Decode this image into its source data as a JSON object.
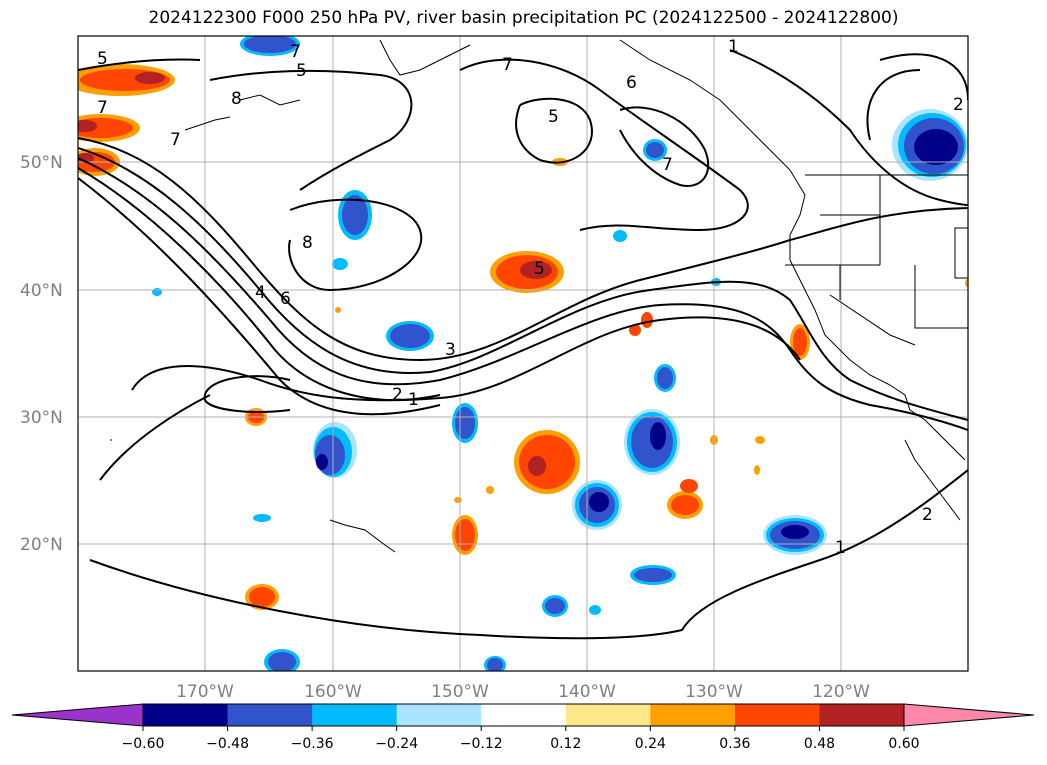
{
  "title": "2024122300 F000 250 hPa PV, river basin precipitation PC (2024122500 - 2024122800)",
  "map": {
    "lon_range": [
      -180,
      -110
    ],
    "lat_range": [
      10,
      60
    ],
    "lat_ticks": [
      {
        "value": 20,
        "label": "20°N"
      },
      {
        "value": 30,
        "label": "30°N"
      },
      {
        "value": 40,
        "label": "40°N"
      },
      {
        "value": 50,
        "label": "50°N"
      }
    ],
    "lon_ticks": [
      {
        "value": -170,
        "label": "170°W"
      },
      {
        "value": -160,
        "label": "160°W"
      },
      {
        "value": -150,
        "label": "150°W"
      },
      {
        "value": -140,
        "label": "140°W"
      },
      {
        "value": -130,
        "label": "130°W"
      },
      {
        "value": -120,
        "label": "120°W"
      }
    ],
    "grid": true,
    "contour_labels": [
      "5",
      "7",
      "7",
      "8",
      "5",
      "7",
      "5",
      "6",
      "7",
      "1",
      "2",
      "8",
      "5",
      "4",
      "6",
      "3",
      "2",
      "1",
      "1",
      "2",
      "7"
    ]
  },
  "colorbar": {
    "ticks": [
      "−0.60",
      "−0.48",
      "−0.36",
      "−0.24",
      "−0.12",
      "0.12",
      "0.24",
      "0.36",
      "0.48",
      "0.60"
    ],
    "under_color": "#9933cc",
    "over_color": "#ff88aa",
    "colors": [
      "#00008b",
      "#3153cc",
      "#00bbff",
      "#aae4ff",
      "#ffffff",
      "#ffe88a",
      "#ffa000",
      "#ff4500",
      "#b22222"
    ]
  }
}
